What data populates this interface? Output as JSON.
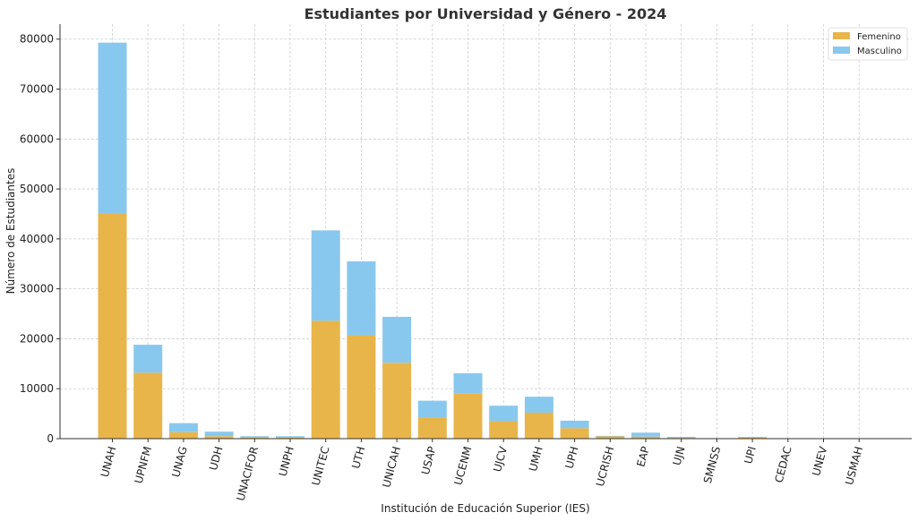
{
  "chart_data": {
    "type": "bar",
    "stacked": true,
    "title": "Estudiantes por Universidad y Género - 2024",
    "xlabel": "Institución de Educación Superior (IES)",
    "ylabel": "Número de Estudiantes",
    "ylim": [
      0,
      83000
    ],
    "yticks": [
      "0",
      "10000",
      "20000",
      "30000",
      "40000",
      "50000",
      "60000",
      "70000",
      "80000"
    ],
    "grid": true,
    "legend_position": "top-right",
    "categories": [
      "UNAH",
      "UPNFM",
      "UNAG",
      "UDH",
      "UNACIFOR",
      "UNPH",
      "UNITEC",
      "UTH",
      "UNICAH",
      "USAP",
      "UCENM",
      "UJCV",
      "UMH",
      "UPH",
      "UCRISH",
      "EAP",
      "UJN",
      "SMNSS",
      "UPI",
      "CEDAC",
      "UNEV",
      "USMAH"
    ],
    "series": [
      {
        "name": "Femenino",
        "color": "#E8B54A",
        "values": [
          45000,
          13200,
          1300,
          500,
          300,
          250,
          23600,
          20700,
          15200,
          4200,
          9000,
          3500,
          5200,
          2100,
          450,
          400,
          150,
          50,
          200,
          20,
          20,
          20
        ]
      },
      {
        "name": "Masculino",
        "color": "#89C8EE",
        "values": [
          34300,
          5600,
          1800,
          900,
          200,
          250,
          18100,
          14800,
          9200,
          3400,
          4100,
          3100,
          3200,
          1500,
          100,
          800,
          200,
          50,
          150,
          20,
          20,
          20
        ]
      }
    ]
  }
}
